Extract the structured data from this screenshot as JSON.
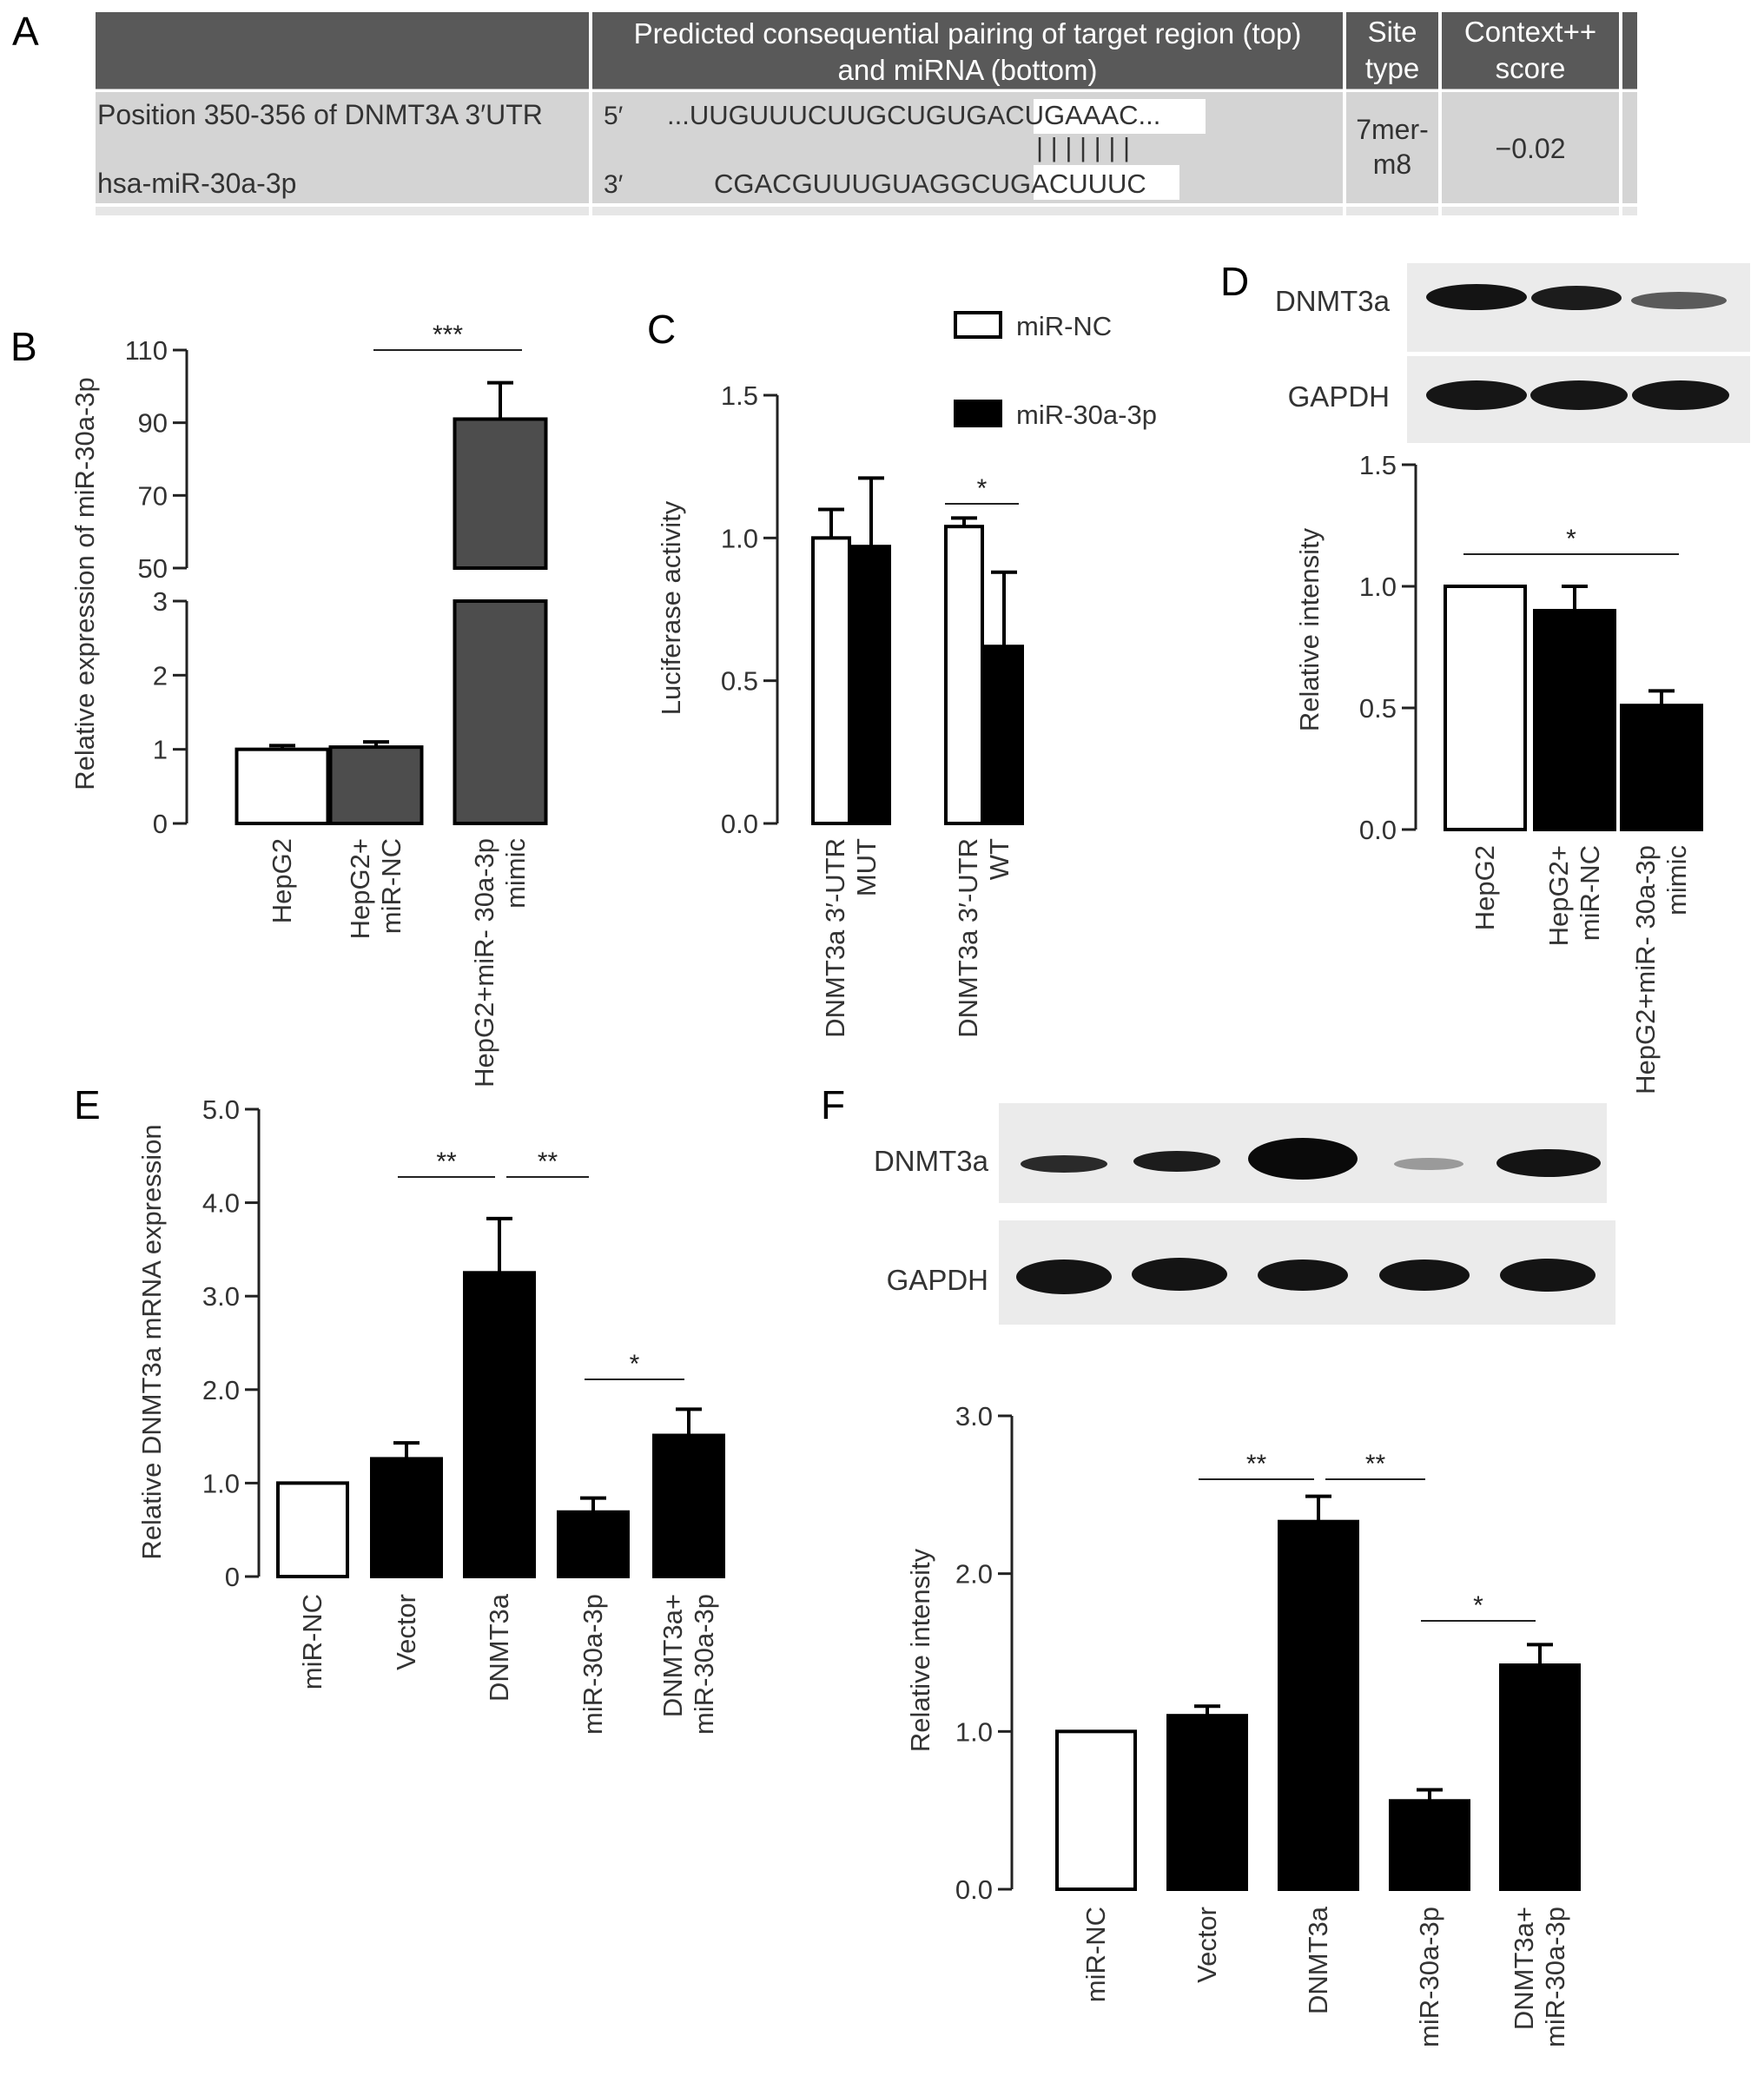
{
  "panel_labels": {
    "a": "A",
    "b": "B",
    "c": "C",
    "d": "D",
    "e": "E",
    "f": "F"
  },
  "table": {
    "header": {
      "col2_line1": "Predicted consequential pairing of target region (top)",
      "col2_line2": "and miRNA (bottom)",
      "col3_line1": "Site",
      "col3_line2": "type",
      "col4_line1": "Context++",
      "col4_line2": "score"
    },
    "row": {
      "target_label": "Position 350-356 of DNMT3A 3′UTR",
      "mirna_label": "hsa-miR-30a-3p",
      "prime5": "5′",
      "prime3": "3′",
      "target_seq_prefix": "...UUGUUUCUUGCUGUG",
      "target_seq_match": "ACUGAAA",
      "target_seq_suffix": "C...",
      "pairing_bars": "| | | | | | |",
      "mirna_seq_prefix": "CGACGUUUGUAGGC",
      "mirna_seq_match": "UGACUUU",
      "mirna_seq_suffix": "C",
      "site_type_line1": "7mer-",
      "site_type_line2": "m8",
      "context_score": "−0.02"
    },
    "colors": {
      "header_bg": "#595959",
      "row_bg": "#d4d4d4",
      "highlight_bg": "#ffffff",
      "header_text": "#ffffff"
    }
  },
  "blots": {
    "d": {
      "labels": [
        "DNMT3a",
        "GAPDH"
      ]
    },
    "f": {
      "labels": [
        "DNMT3a",
        "GAPDH"
      ]
    }
  },
  "chart_data": [
    {
      "panel": "B",
      "type": "bar",
      "ylabel": "Relative expression of miR-30a-3p",
      "categories": [
        "HepG2",
        "HepG2+ miR-NC",
        "HepG2+miR- 30a-3p mimic"
      ],
      "values": [
        1.0,
        1.03,
        91
      ],
      "errors": [
        0.05,
        0.07,
        10
      ],
      "fills": [
        "#ffffff",
        "#4d4d4d",
        "#4d4d4d"
      ],
      "axis_break": {
        "lower": [
          0,
          3
        ],
        "upper": [
          50,
          110
        ]
      },
      "yticks_lower": [
        "0",
        "1",
        "2",
        "3"
      ],
      "yticks_upper": [
        "50",
        "70",
        "90",
        "110"
      ],
      "significance": [
        {
          "from": 1,
          "to": 2,
          "label": "***"
        }
      ]
    },
    {
      "panel": "C",
      "type": "bar",
      "ylabel": "Luciferase activity",
      "categories": [
        "DNMT3a 3′-UTR MUT",
        "DNMT3a 3′-UTR WT"
      ],
      "series": [
        {
          "name": "miR-NC",
          "values": [
            1.0,
            1.04
          ],
          "errors": [
            0.1,
            0.03
          ],
          "color": "#ffffff"
        },
        {
          "name": "miR-30a-3p",
          "values": [
            0.97,
            0.62
          ],
          "errors": [
            0.24,
            0.26
          ],
          "color": "#000000"
        }
      ],
      "ylim": [
        0,
        1.5
      ],
      "yticks": [
        "0.0",
        "0.5",
        "1.0",
        "1.5"
      ],
      "significance": [
        {
          "group": 1,
          "label": "*"
        }
      ]
    },
    {
      "panel": "D",
      "type": "bar",
      "ylabel": "Relative intensity",
      "categories": [
        "HepG2",
        "HepG2+ miR-NC",
        "HepG2+miR- 30a-3p mimic"
      ],
      "values": [
        1.0,
        0.9,
        0.51
      ],
      "errors": [
        0,
        0.1,
        0.06
      ],
      "fills": [
        "#ffffff",
        "#000000",
        "#000000"
      ],
      "ylim": [
        0,
        1.5
      ],
      "yticks": [
        "0.0",
        "0.5",
        "1.0",
        "1.5"
      ],
      "significance": [
        {
          "from": 0,
          "to": 2,
          "label": "*"
        }
      ]
    },
    {
      "panel": "E",
      "type": "bar",
      "ylabel": "Relative DNMT3a mRNA expression",
      "categories": [
        "miR-NC",
        "Vector",
        "DNMT3a",
        "miR-30a-3p",
        "DNMT3a+ miR-30a-3p"
      ],
      "values": [
        1.0,
        1.26,
        3.25,
        0.69,
        1.51
      ],
      "errors": [
        0,
        0.17,
        0.58,
        0.15,
        0.28
      ],
      "fills": [
        "#ffffff",
        "#000000",
        "#000000",
        "#000000",
        "#000000"
      ],
      "ylim": [
        0,
        5
      ],
      "yticks": [
        "0",
        "1.0",
        "2.0",
        "3.0",
        "4.0",
        "5.0"
      ],
      "significance": [
        {
          "from": 1,
          "to": 2,
          "label": "**"
        },
        {
          "from": 2,
          "to": 3,
          "label": "**"
        },
        {
          "from": 3,
          "to": 4,
          "label": "*"
        }
      ]
    },
    {
      "panel": "F",
      "type": "bar",
      "ylabel": "Relative intensity",
      "categories": [
        "miR-NC",
        "Vector",
        "DNMT3a",
        "miR-30a-3p",
        "DNMT3a+ miR-30a-3p"
      ],
      "values": [
        1.0,
        1.1,
        2.33,
        0.56,
        1.42
      ],
      "errors": [
        0,
        0.06,
        0.16,
        0.07,
        0.13
      ],
      "fills": [
        "#ffffff",
        "#000000",
        "#000000",
        "#000000",
        "#000000"
      ],
      "ylim": [
        0,
        3
      ],
      "yticks": [
        "0.0",
        "1.0",
        "2.0",
        "3.0"
      ],
      "significance": [
        {
          "from": 1,
          "to": 2,
          "label": "**"
        },
        {
          "from": 2,
          "to": 3,
          "label": "**"
        },
        {
          "from": 3,
          "to": 4,
          "label": "*"
        }
      ]
    }
  ]
}
